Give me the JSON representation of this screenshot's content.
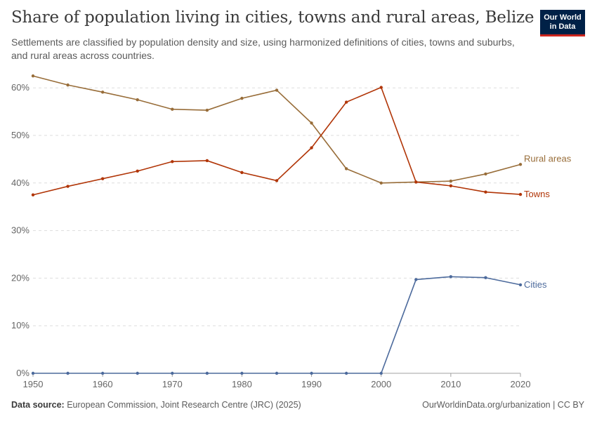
{
  "title": "Share of population living in cities, towns and rural areas, Belize",
  "subtitle": "Settlements are classified by population density and size, using harmonized definitions of cities, towns and suburbs, and rural areas across countries.",
  "logo": {
    "line1": "Our World",
    "line2": "in Data",
    "bg": "#002147",
    "accent": "#ce261e"
  },
  "footer": {
    "source_label": "Data source:",
    "source_text": "European Commission, Joint Research Centre (JRC) (2025)",
    "right_text": "OurWorldinData.org/urbanization | CC BY"
  },
  "chart_data": {
    "type": "line",
    "x": [
      1950,
      1955,
      1960,
      1965,
      1970,
      1975,
      1980,
      1985,
      1990,
      1995,
      2000,
      2005,
      2010,
      2015,
      2020
    ],
    "x_ticks": [
      "1950",
      "1960",
      "1970",
      "1980",
      "1990",
      "2000",
      "2010",
      "2020"
    ],
    "y_ticks": [
      "0%",
      "10%",
      "20%",
      "30%",
      "40%",
      "50%",
      "60%"
    ],
    "ylim": [
      0,
      62
    ],
    "grid": true,
    "series": [
      {
        "name": "Rural areas",
        "color": "#986d39",
        "values": [
          62.5,
          60.6,
          59.1,
          57.5,
          55.5,
          55.3,
          57.8,
          59.5,
          52.6,
          43.0,
          40.0,
          40.2,
          40.4,
          41.9,
          43.9
        ]
      },
      {
        "name": "Towns",
        "color": "#b13507",
        "values": [
          37.5,
          39.3,
          40.9,
          42.5,
          44.5,
          44.7,
          42.2,
          40.5,
          47.4,
          57.0,
          60.1,
          40.2,
          39.4,
          38.1,
          37.6
        ]
      },
      {
        "name": "Cities",
        "color": "#4c6a9c",
        "values": [
          0,
          0,
          0,
          0,
          0,
          0,
          0,
          0,
          0,
          0,
          0,
          19.7,
          20.3,
          20.1,
          18.6
        ]
      }
    ]
  }
}
